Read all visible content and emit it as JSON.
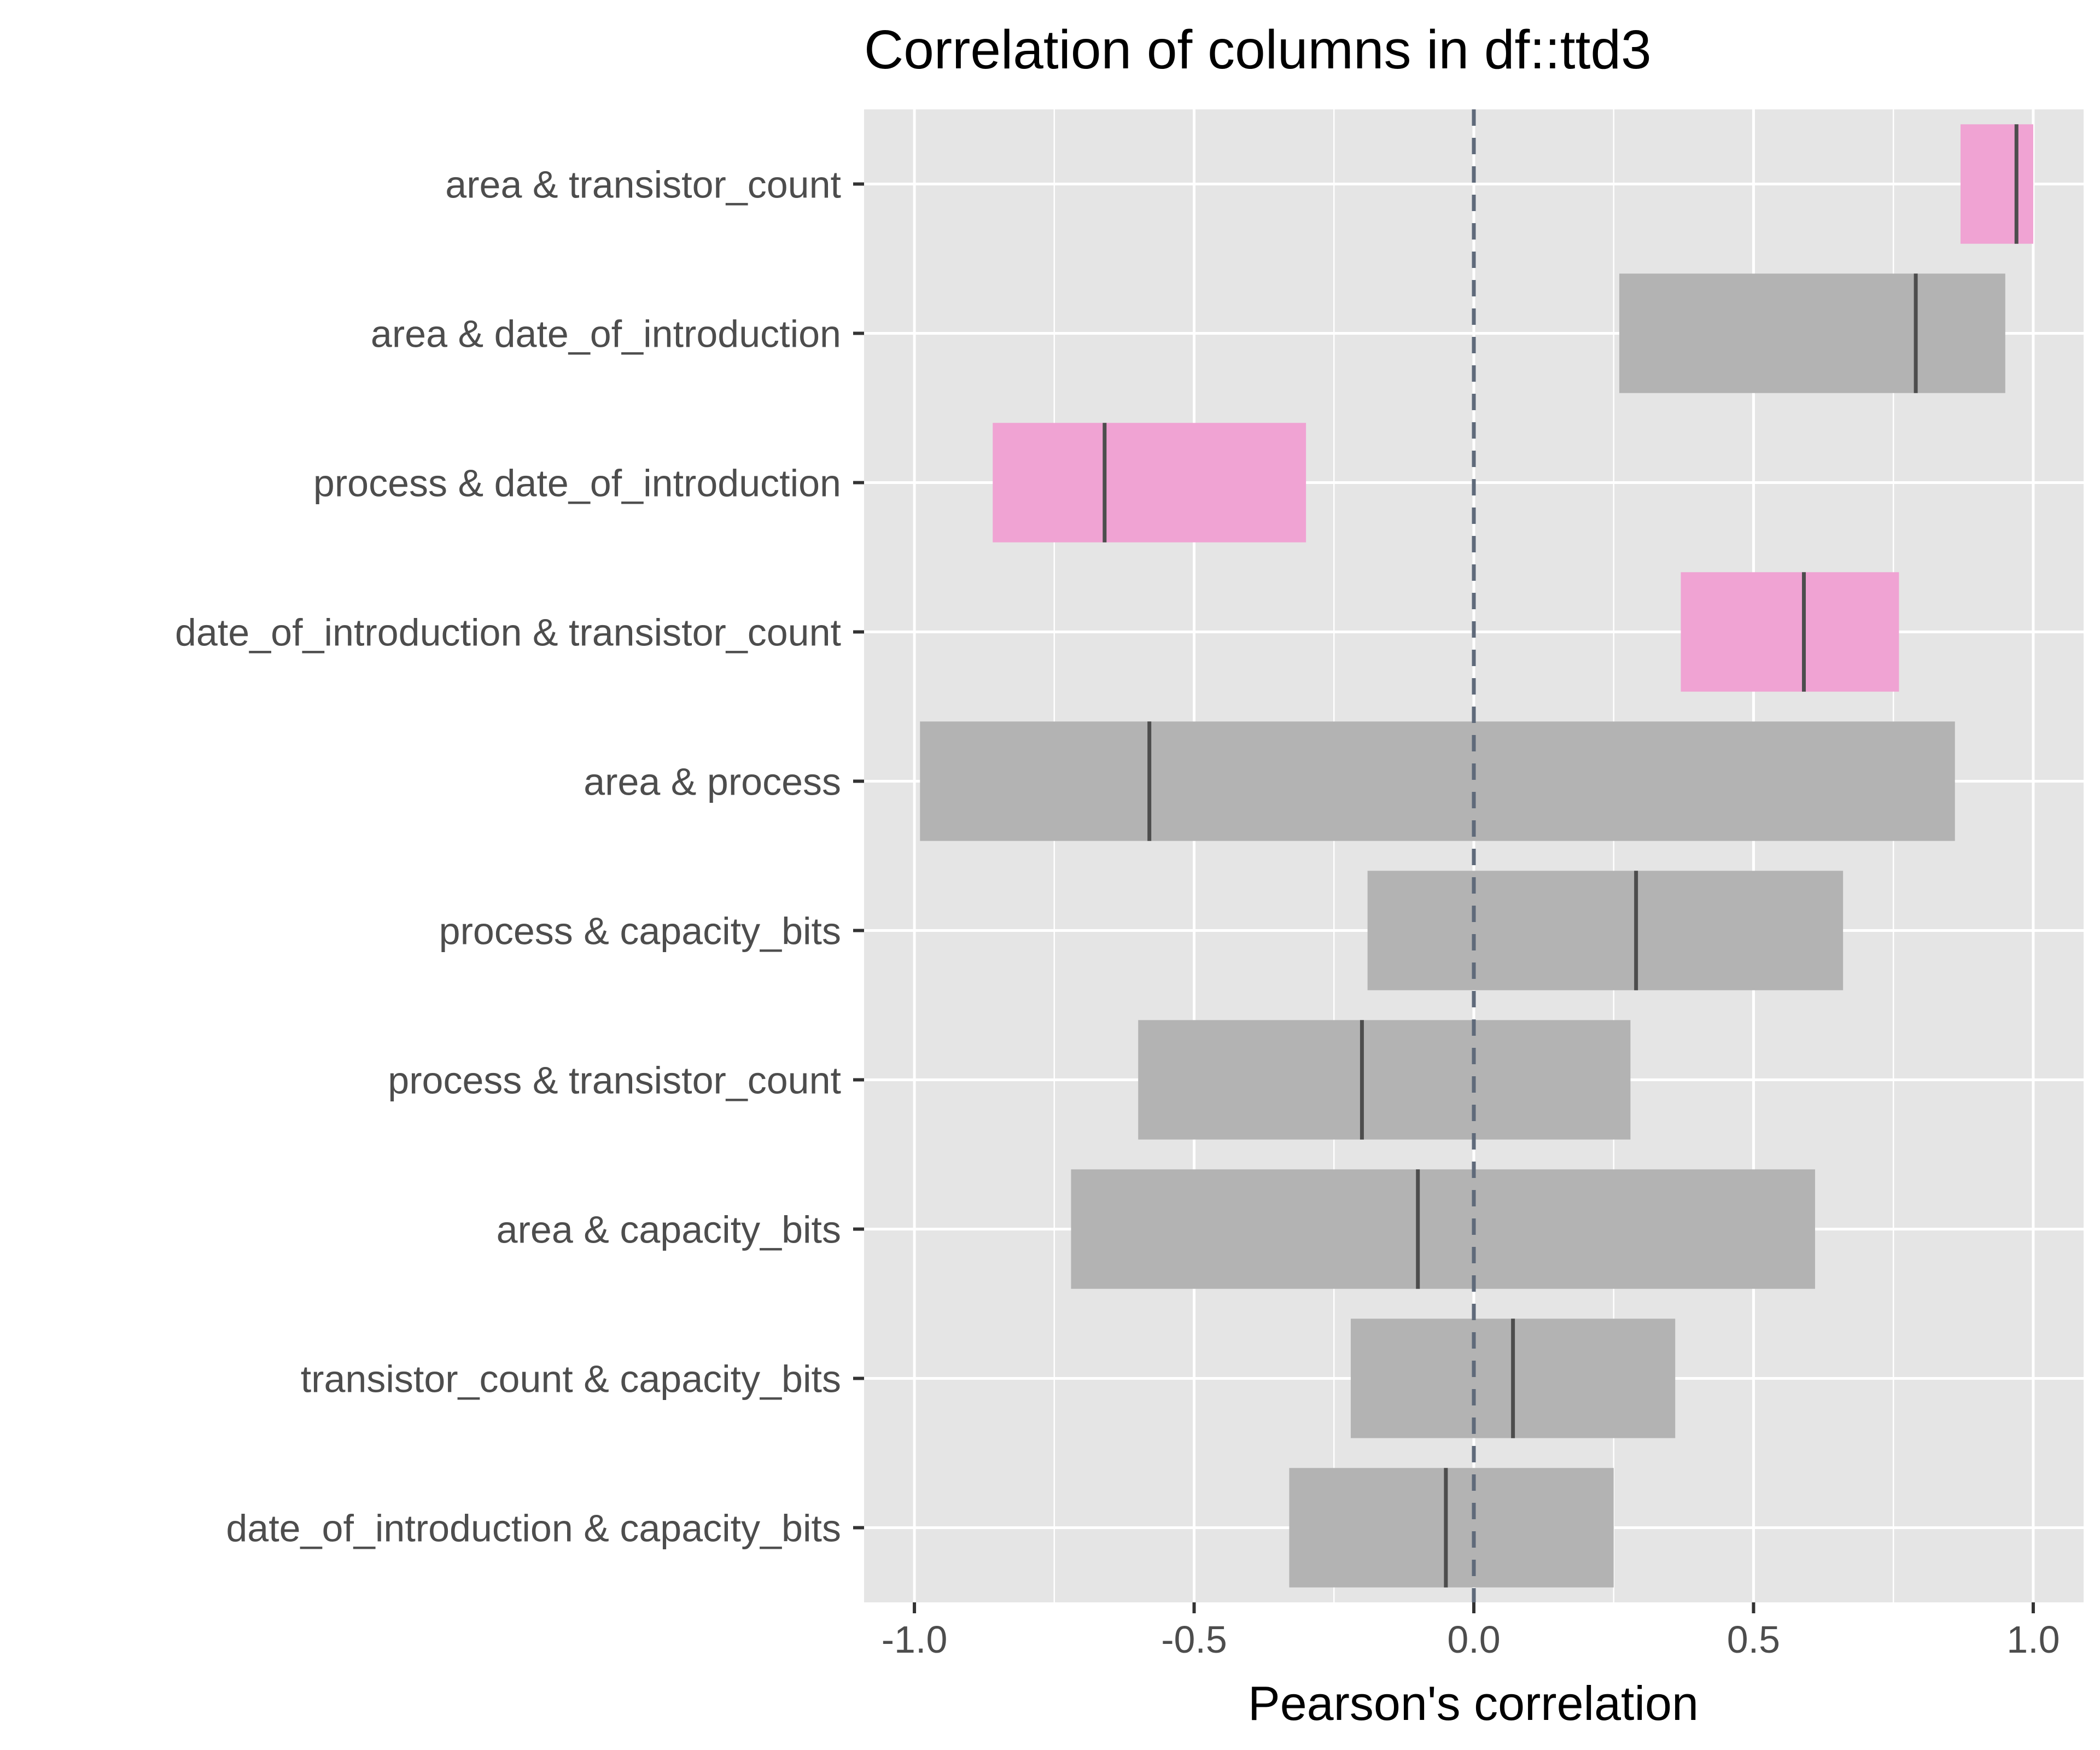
{
  "chart_data": {
    "type": "bar",
    "title": "Correlation of columns in df::ttd3",
    "xlabel": "Pearson's correlation",
    "ylabel": "",
    "xlim": [
      -1.09,
      1.09
    ],
    "x_ticks": [
      "-1.0",
      "-0.5",
      "0.0",
      "0.5",
      "1.0"
    ],
    "x_tick_values": [
      -1.0,
      -0.5,
      0.0,
      0.5,
      1.0
    ],
    "reference_line": 0.0,
    "grid": true,
    "legend": "none",
    "colors": {
      "panel_background": "#e5e5e5",
      "gridline": "#ffffff",
      "significant_bar": "#f0a3d3",
      "nonsignificant_bar": "#b3b3b3",
      "estimate_line": "#4d4d4d",
      "reference_line": "#5f6a7a"
    },
    "rows": [
      {
        "label": "area & transistor_count",
        "estimate": 0.97,
        "low": 0.87,
        "high": 1.0,
        "significant": true
      },
      {
        "label": "area & date_of_introduction",
        "estimate": 0.79,
        "low": 0.26,
        "high": 0.95,
        "significant": false
      },
      {
        "label": "process & date_of_introduction",
        "estimate": -0.66,
        "low": -0.86,
        "high": -0.3,
        "significant": true
      },
      {
        "label": "date_of_introduction & transistor_count",
        "estimate": 0.59,
        "low": 0.37,
        "high": 0.76,
        "significant": true
      },
      {
        "label": "area & process",
        "estimate": -0.58,
        "low": -0.99,
        "high": 0.86,
        "significant": false
      },
      {
        "label": "process & capacity_bits",
        "estimate": 0.29,
        "low": -0.19,
        "high": 0.66,
        "significant": false
      },
      {
        "label": "process & transistor_count",
        "estimate": -0.2,
        "low": -0.6,
        "high": 0.28,
        "significant": false
      },
      {
        "label": "area & capacity_bits",
        "estimate": -0.1,
        "low": -0.72,
        "high": 0.61,
        "significant": false
      },
      {
        "label": "transistor_count & capacity_bits",
        "estimate": 0.07,
        "low": -0.22,
        "high": 0.36,
        "significant": false
      },
      {
        "label": "date_of_introduction & capacity_bits",
        "estimate": -0.05,
        "low": -0.33,
        "high": 0.25,
        "significant": false
      }
    ]
  }
}
